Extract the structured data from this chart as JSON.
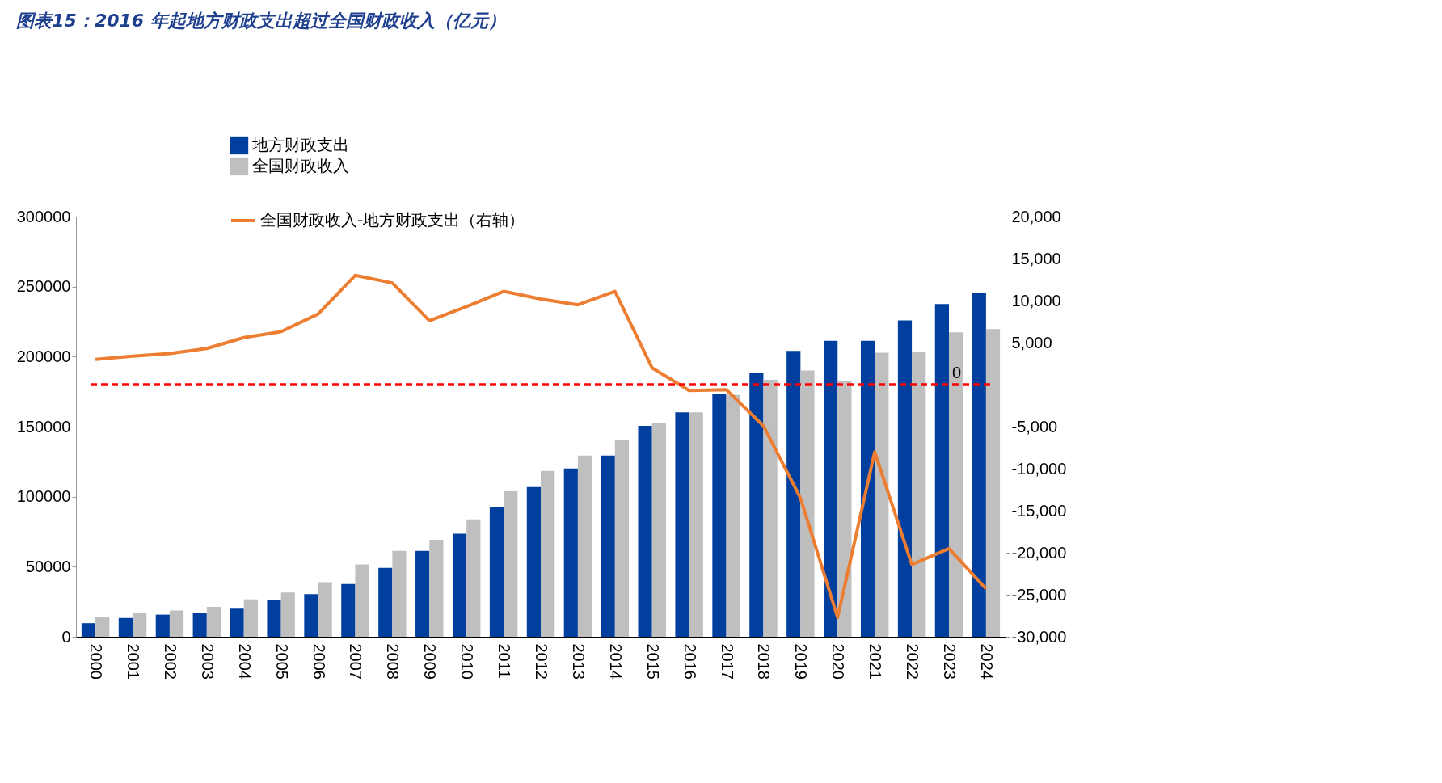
{
  "chart_data": {
    "type": "bar",
    "title": "图表15：2016 年起地方财政支出超过全国财政收入（亿元）",
    "categories": [
      "2000",
      "2001",
      "2002",
      "2003",
      "2004",
      "2005",
      "2006",
      "2007",
      "2008",
      "2009",
      "2010",
      "2011",
      "2012",
      "2013",
      "2014",
      "2015",
      "2016",
      "2017",
      "2018",
      "2019",
      "2020",
      "2021",
      "2022",
      "2023",
      "2024"
    ],
    "series": [
      {
        "name": "地方财政支出",
        "color": "#003f9e",
        "values": [
          9700,
          13400,
          15800,
          17000,
          20000,
          26100,
          30400,
          37700,
          49200,
          61300,
          73500,
          92300,
          106900,
          120200,
          129400,
          150600,
          160300,
          173700,
          188300,
          204100,
          211300,
          211300,
          225900,
          237500,
          245300
        ]
      },
      {
        "name": "全国财政收入",
        "color": "#bfbfbf",
        "values": [
          14000,
          17000,
          18800,
          21300,
          26700,
          31600,
          38900,
          51600,
          61300,
          69200,
          83800,
          103800,
          118400,
          129400,
          140300,
          152400,
          160300,
          172600,
          183400,
          190100,
          182900,
          202800,
          203600,
          217400,
          219700
        ]
      },
      {
        "name": "全国财政收入-地方财政支出（右轴）",
        "color": "#ed7d31",
        "type": "line",
        "axis": "y2",
        "values": [
          3000,
          3400,
          3700,
          4300,
          5600,
          6300,
          8400,
          13000,
          12100,
          7600,
          9300,
          11100,
          10200,
          9500,
          11100,
          2000,
          -700,
          -600,
          -4900,
          -13500,
          -27700,
          -8000,
          -21400,
          -19500,
          -24300
        ]
      }
    ],
    "ylim": [
      0,
      300000
    ],
    "yticks": [
      0,
      50000,
      100000,
      150000,
      200000,
      250000,
      300000
    ],
    "y2lim": [
      -30000,
      20000
    ],
    "y2ticks": [
      {
        "value": -30000,
        "label": "-30,000"
      },
      {
        "value": -25000,
        "label": "-25,000"
      },
      {
        "value": -20000,
        "label": "-20,000"
      },
      {
        "value": -15000,
        "label": "-15,000"
      },
      {
        "value": -10000,
        "label": "-10,000"
      },
      {
        "value": -5000,
        "label": "-5,000"
      },
      {
        "value": 0,
        "label": null
      },
      {
        "value": 5000,
        "label": "5,000"
      },
      {
        "value": 10000,
        "label": "10,000"
      },
      {
        "value": 15000,
        "label": "15,000"
      },
      {
        "value": 20000,
        "label": "20,000"
      }
    ],
    "ref_lines": [
      {
        "axis": "y2",
        "value": 0,
        "label": "0",
        "color": "#ff0000",
        "line_style": "dashed"
      }
    ],
    "legend": "top left",
    "grid": false,
    "marker": "none"
  }
}
